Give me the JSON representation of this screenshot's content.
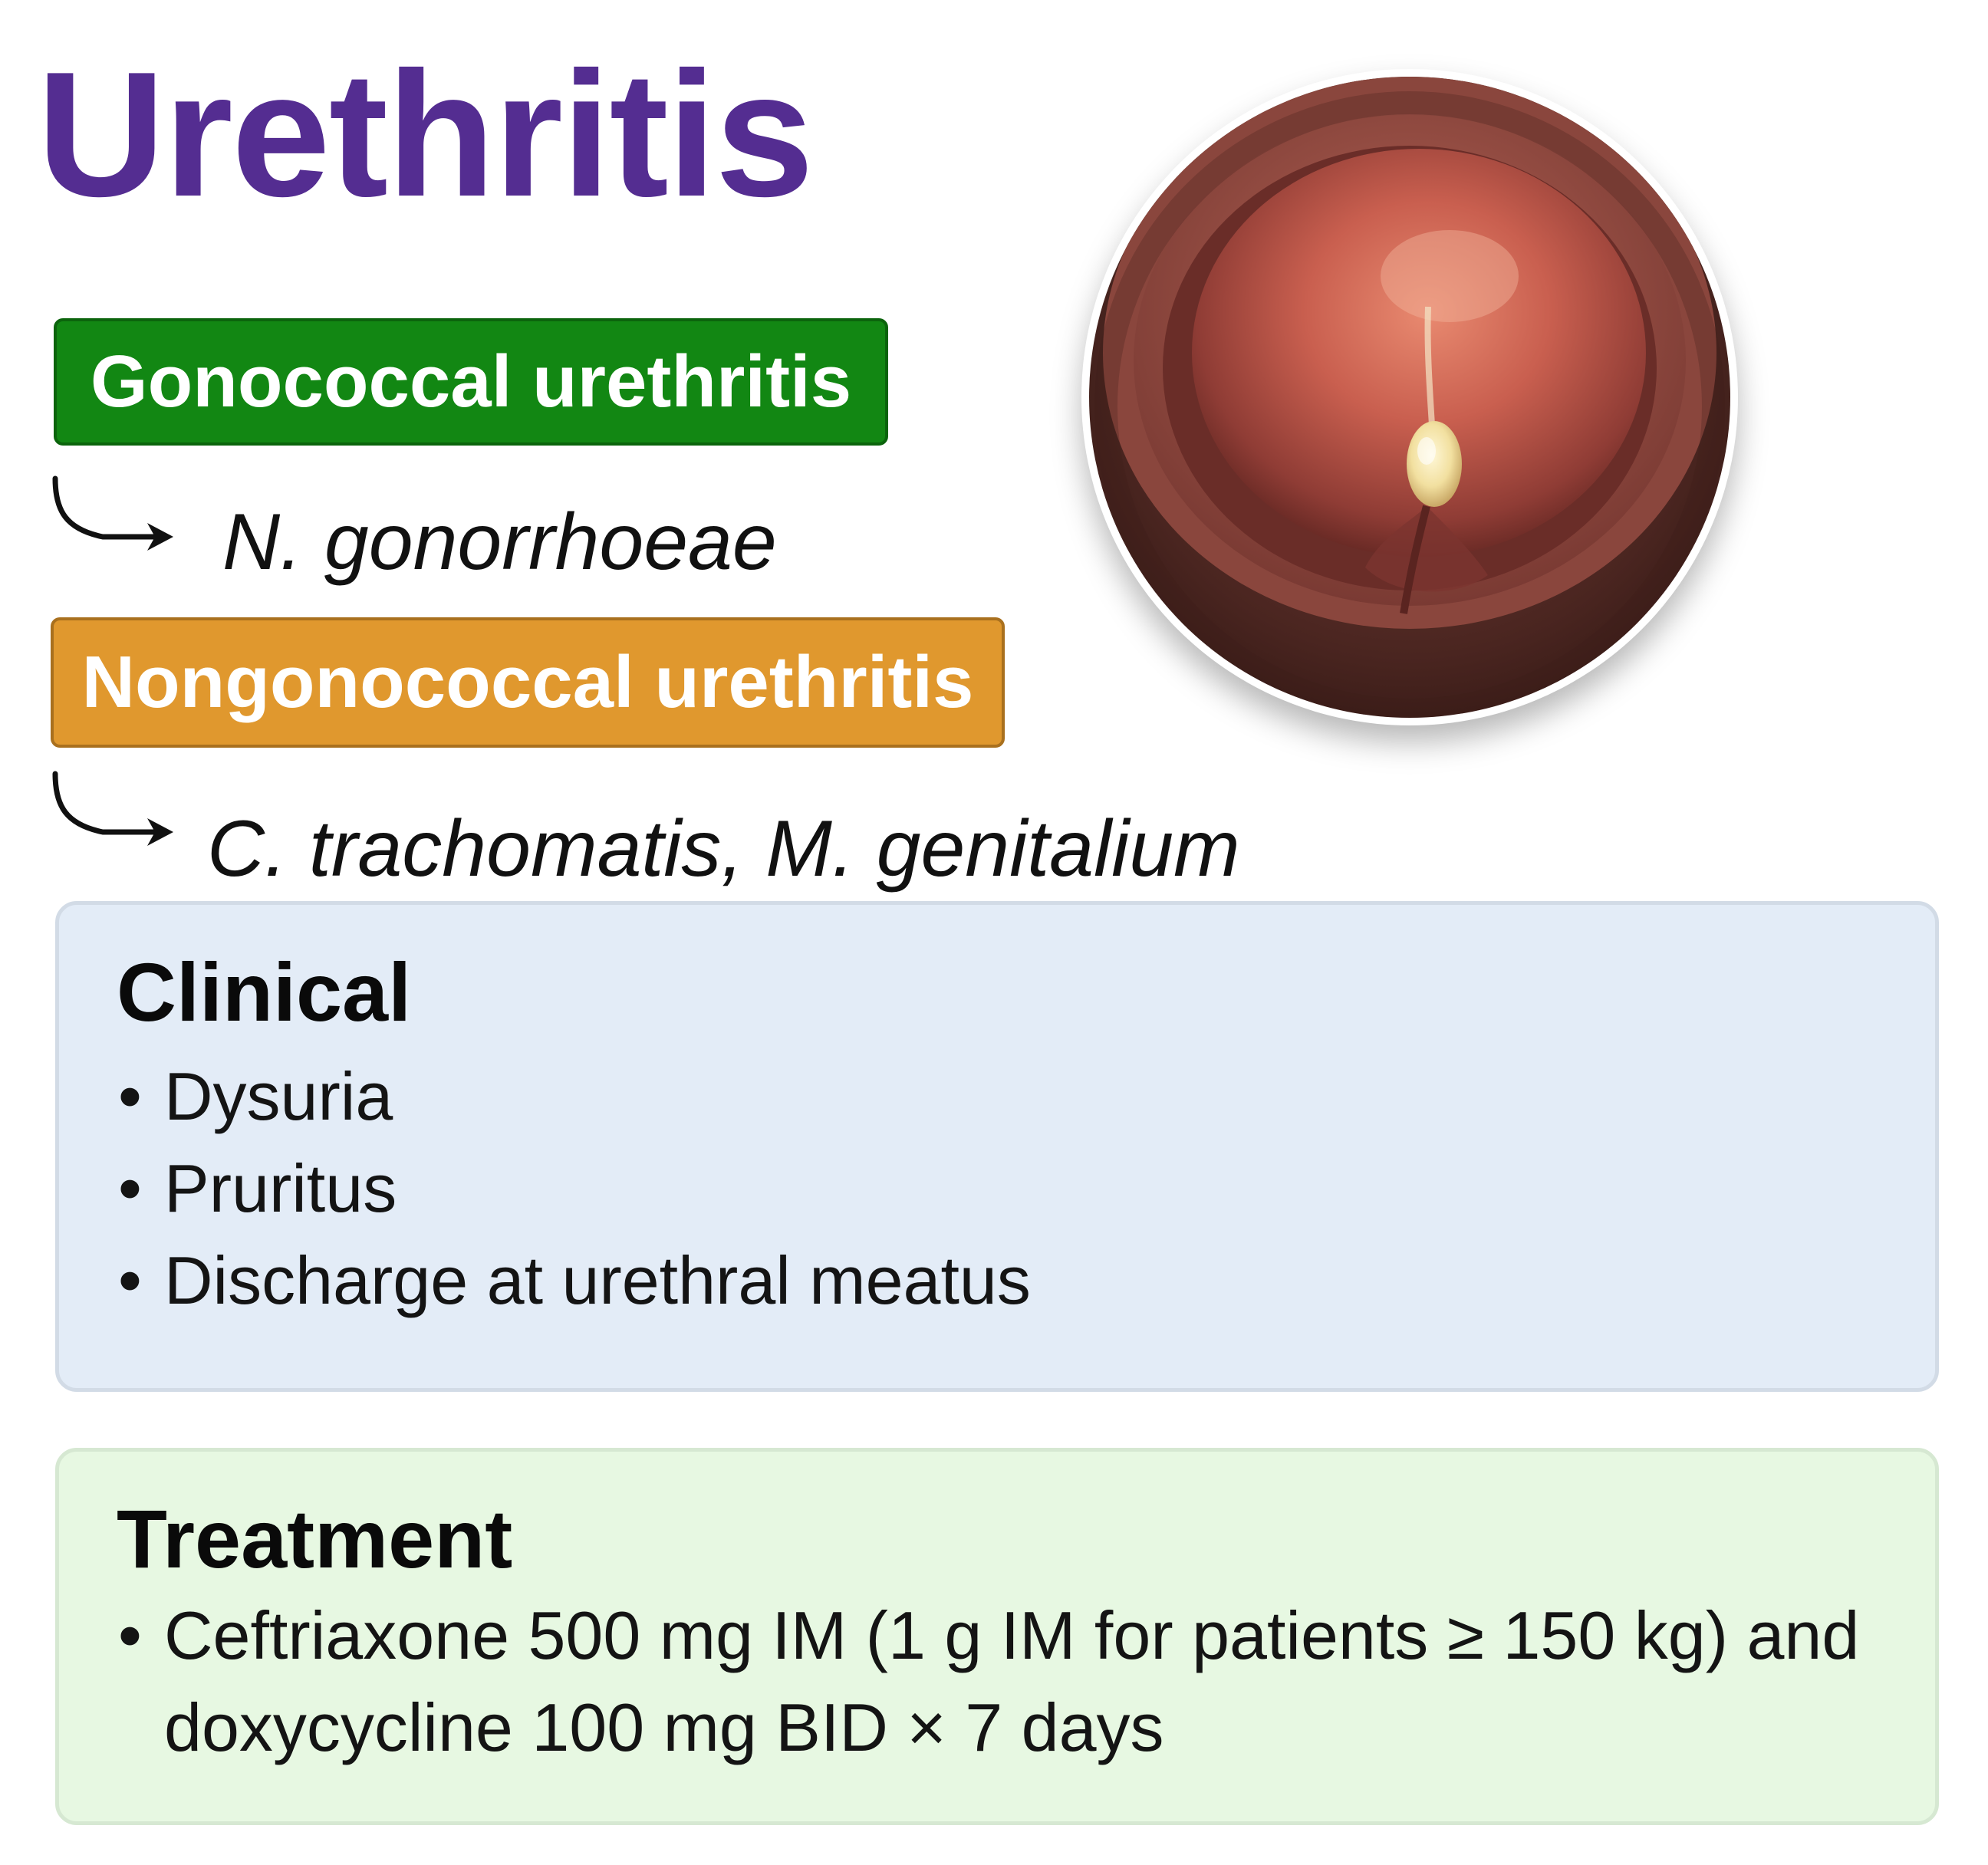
{
  "title": "Urethritis",
  "colors": {
    "title": "#542d91",
    "gonococcal_badge": "#128713",
    "nongonococcal_badge": "#e0982e",
    "clinical_panel": "#e3ecf7",
    "treatment_panel": "#e7f8e2"
  },
  "types": [
    {
      "label": "Gonococcal urethritis",
      "organisms": "N. gonorrhoeae",
      "icon": "curved-arrow-icon"
    },
    {
      "label": "Nongonococcal urethritis",
      "organisms": "C. trachomatis, M. genitalium",
      "icon": "curved-arrow-icon"
    }
  ],
  "clinical": {
    "heading": "Clinical",
    "items": [
      "Dysuria",
      "Pruritus",
      "Discharge at urethral meatus"
    ]
  },
  "treatment": {
    "heading": "Treatment",
    "items": [
      "Ceftriaxone 500 mg IM (1 g IM for patients ≥ 150 kg) and doxycycline 100 mg BID × 7 days"
    ]
  }
}
